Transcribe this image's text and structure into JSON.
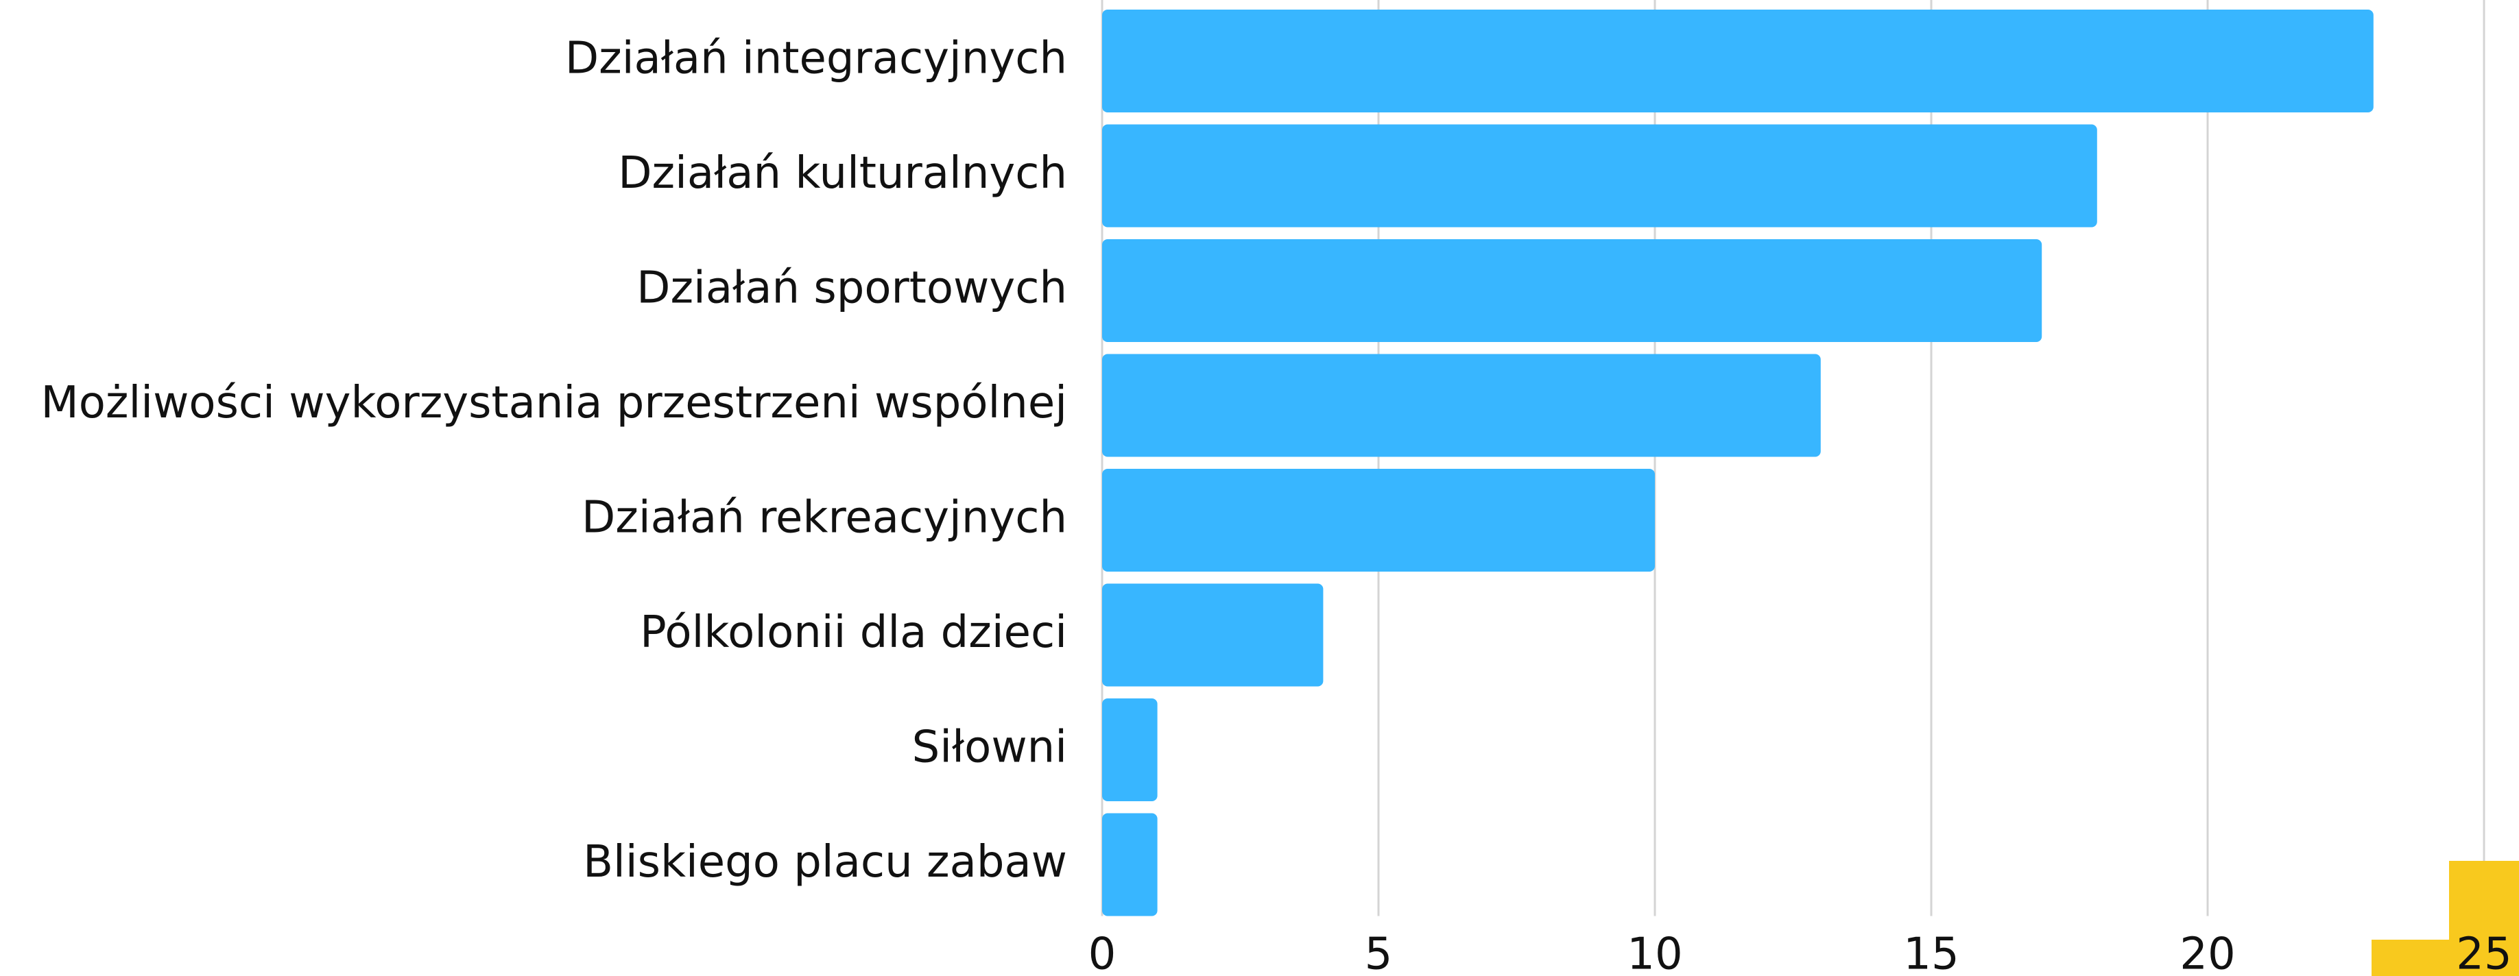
{
  "chart_data": {
    "type": "bar",
    "orientation": "horizontal",
    "categories": [
      "Działań integracyjnych",
      "Działań kulturalnych",
      "Działań sportowych",
      "Możliwości wykorzystania przestrzeni wspólnej",
      "Działań rekreacyjnych",
      "Pólkolonii dla dzieci",
      "Siłowni",
      "Bliskiego placu zabaw"
    ],
    "values": [
      23,
      18,
      17,
      13,
      10,
      4,
      1,
      1
    ],
    "color": "#38b6ff",
    "xlim": [
      0,
      25
    ],
    "xticks": [
      0,
      5,
      10,
      15,
      20,
      25
    ],
    "grid": true
  }
}
